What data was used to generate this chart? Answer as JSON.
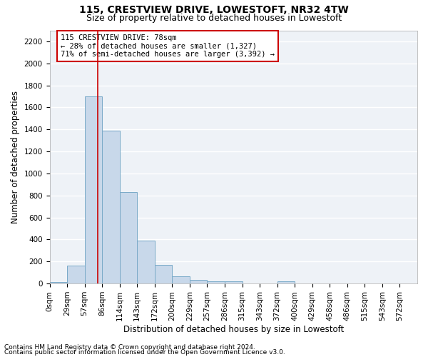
{
  "title": "115, CRESTVIEW DRIVE, LOWESTOFT, NR32 4TW",
  "subtitle": "Size of property relative to detached houses in Lowestoft",
  "xlabel": "Distribution of detached houses by size in Lowestoft",
  "ylabel": "Number of detached properties",
  "bar_color": "#c8d8ea",
  "bar_edge_color": "#7aaac8",
  "bin_labels": [
    "0sqm",
    "29sqm",
    "57sqm",
    "86sqm",
    "114sqm",
    "143sqm",
    "172sqm",
    "200sqm",
    "229sqm",
    "257sqm",
    "286sqm",
    "315sqm",
    "343sqm",
    "372sqm",
    "400sqm",
    "429sqm",
    "458sqm",
    "486sqm",
    "515sqm",
    "543sqm",
    "572sqm"
  ],
  "bar_heights": [
    15,
    160,
    1700,
    1390,
    830,
    390,
    170,
    65,
    30,
    20,
    18,
    0,
    0,
    20,
    0,
    0,
    0,
    0,
    0,
    0,
    0
  ],
  "ylim": [
    0,
    2300
  ],
  "yticks": [
    0,
    200,
    400,
    600,
    800,
    1000,
    1200,
    1400,
    1600,
    1800,
    2000,
    2200
  ],
  "property_line_x": 2,
  "annotation_text": "115 CRESTVIEW DRIVE: 78sqm\n← 28% of detached houses are smaller (1,327)\n71% of semi-detached houses are larger (3,392) →",
  "annotation_box_color": "#ffffff",
  "annotation_box_edge": "#cc0000",
  "vline_color": "#cc0000",
  "footer1": "Contains HM Land Registry data © Crown copyright and database right 2024.",
  "footer2": "Contains public sector information licensed under the Open Government Licence v3.0.",
  "background_color": "#eef2f7",
  "grid_color": "#ffffff",
  "title_fontsize": 10,
  "subtitle_fontsize": 9,
  "axis_label_fontsize": 8.5,
  "tick_fontsize": 7.5,
  "annotation_fontsize": 7.5,
  "footer_fontsize": 6.5
}
